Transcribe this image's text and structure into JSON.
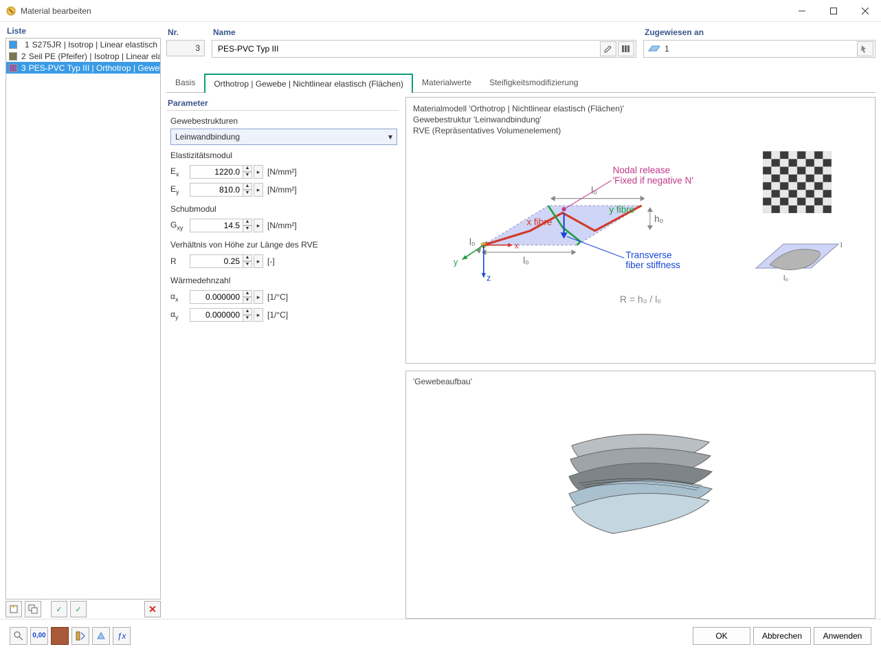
{
  "window": {
    "title": "Material bearbeiten"
  },
  "list": {
    "header": "Liste",
    "items": [
      {
        "num": "1",
        "label": "S275JR | Isotrop | Linear elastisch",
        "color": "#3d9be6"
      },
      {
        "num": "2",
        "label": "Seil PE (Pfeifer) | Isotrop | Linear elasti",
        "color": "#7a7552"
      },
      {
        "num": "3",
        "label": "PES-PVC Typ III | Orthotrop | Gewebe",
        "color": "#8f61a8"
      }
    ]
  },
  "form": {
    "nr_label": "Nr.",
    "nr_value": "3",
    "name_label": "Name",
    "name_value": "PES-PVC Typ III",
    "assigned_label": "Zugewiesen an",
    "assigned_value": "1"
  },
  "tabs": {
    "basis": "Basis",
    "ortho": "Orthotrop | Gewebe | Nichtlinear elastisch (Flächen)",
    "materialwerte": "Materialwerte",
    "steifigkeit": "Steifigkeitsmodifizierung"
  },
  "params": {
    "header": "Parameter",
    "gewebe_label": "Gewebestrukturen",
    "gewebe_value": "Leinwandbindung",
    "emod_label": "Elastizitätsmodul",
    "ex_sym": "E",
    "ex_sub": "x",
    "ex_val": "1220.0",
    "ex_unit": "[N/mm²]",
    "ey_sym": "E",
    "ey_sub": "y",
    "ey_val": "810.0",
    "ey_unit": "[N/mm²]",
    "gmod_label": "Schubmodul",
    "gxy_sym": "G",
    "gxy_sub": "xy",
    "gxy_val": "14.5",
    "gxy_unit": "[N/mm²]",
    "ratio_label": "Verhältnis von Höhe zur Länge des RVE",
    "r_sym": "R",
    "r_val": "0.25",
    "r_unit": "[-]",
    "warm_label": "Wärmedehnzahl",
    "ax_sym": "α",
    "ax_sub": "x",
    "ax_val": "0.000000",
    "ax_unit": "[1/°C]",
    "ay_sym": "α",
    "ay_sub": "y",
    "ay_val": "0.000000",
    "ay_unit": "[1/°C]"
  },
  "diagram1": {
    "line1": "Materialmodell 'Orthotrop | Nichtlinear elastisch (Flächen)'",
    "line2": "Gewebestruktur 'Leinwandbindung'",
    "line3": "RVE (Repräsentatives Volumenelement)",
    "nodal_release": "Nodal release",
    "nodal_release2": "'Fixed if negative N'",
    "x_fibre": "x fibre",
    "y_fibre": "y fibre",
    "transverse1": "Transverse",
    "transverse2": "fiber stiffness",
    "formula": "R = h₀ / l₀",
    "l0": "l₀",
    "h0": "h₀",
    "axis_x": "x",
    "axis_y": "y",
    "axis_z": "z",
    "colors": {
      "xfibre": "#d23a2a",
      "yfibre": "#1f9e3d",
      "nodal": "#c0398a",
      "transverse": "#1846d6",
      "surface_fill": "#cfd5f6",
      "surface_stroke": "#8f93b8",
      "axis_y": "#1f9e3d",
      "axis_z": "#1846d6",
      "formula": "#888"
    }
  },
  "diagram2": {
    "title": "'Gewebeaufbau'"
  },
  "buttons": {
    "ok": "OK",
    "cancel": "Abbrechen",
    "apply": "Anwenden"
  }
}
